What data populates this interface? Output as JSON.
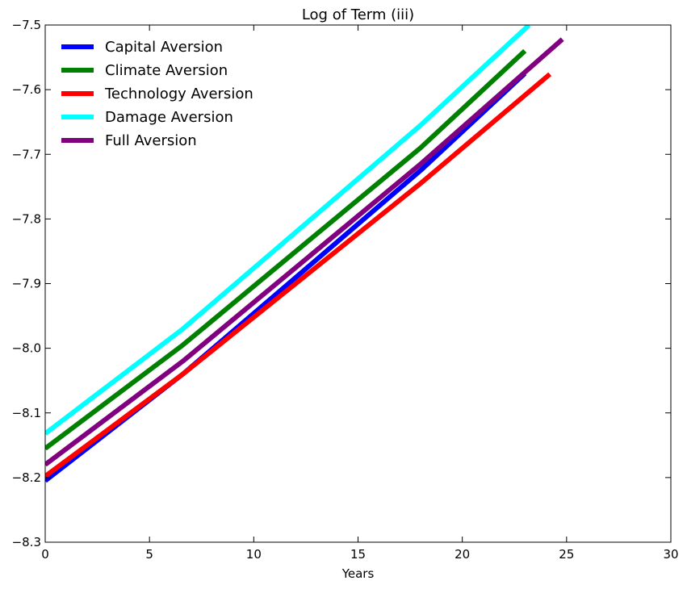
{
  "chart_data": {
    "type": "line",
    "title": "Log of Term (iii)",
    "xlabel": "Years",
    "ylabel": "",
    "xlim": [
      0,
      30
    ],
    "ylim": [
      -8.3,
      -7.5
    ],
    "xticks": [
      0,
      5,
      10,
      15,
      20,
      25,
      30
    ],
    "xtick_labels": [
      "0",
      "5",
      "10",
      "15",
      "20",
      "25",
      "30"
    ],
    "yticks": [
      -8.3,
      -8.2,
      -8.1,
      -8.0,
      -7.9,
      -7.8,
      -7.7,
      -7.6,
      -7.5
    ],
    "ytick_labels": [
      "−8.3",
      "−8.2",
      "−8.1",
      "−8.0",
      "−7.9",
      "−7.8",
      "−7.7",
      "−7.6",
      "−7.5"
    ],
    "grid": false,
    "legend_position": "top-left",
    "series": [
      {
        "name": "Capital Aversion",
        "color": "#0000ff",
        "x": [
          0,
          6.6,
          18.0,
          23.0
        ],
        "y": [
          -8.205,
          -8.04,
          -7.725,
          -7.575
        ]
      },
      {
        "name": "Climate Aversion",
        "color": "#008000",
        "x": [
          0,
          6.6,
          18.0,
          23.0
        ],
        "y": [
          -8.155,
          -7.995,
          -7.69,
          -7.54
        ]
      },
      {
        "name": "Technology Aversion",
        "color": "#ff0000",
        "x": [
          0,
          6.6,
          18.0,
          24.2
        ],
        "y": [
          -8.198,
          -8.04,
          -7.745,
          -7.576
        ]
      },
      {
        "name": "Damage Aversion",
        "color": "#00ffff",
        "x": [
          0,
          6.6,
          18.0,
          23.2
        ],
        "y": [
          -8.132,
          -7.97,
          -7.655,
          -7.5
        ]
      },
      {
        "name": "Full Aversion",
        "color": "#800080",
        "x": [
          0,
          6.6,
          18.0,
          24.8
        ],
        "y": [
          -8.18,
          -8.02,
          -7.715,
          -7.522
        ]
      }
    ]
  }
}
